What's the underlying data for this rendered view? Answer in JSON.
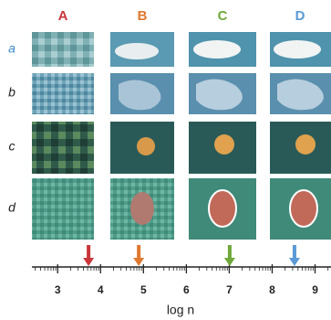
{
  "figure": {
    "columns": [
      {
        "label": "A",
        "color": "#c8363a"
      },
      {
        "label": "B",
        "color": "#e0782e"
      },
      {
        "label": "C",
        "color": "#6ea83a"
      },
      {
        "label": "D",
        "color": "#5a9ad6"
      }
    ],
    "rows": [
      {
        "label": "a",
        "color": "#3a86c8"
      },
      {
        "label": "b",
        "color": "#222222"
      },
      {
        "label": "c",
        "color": "#222222"
      },
      {
        "label": "d",
        "color": "#222222"
      }
    ],
    "axis": {
      "label": "log n",
      "xlim": [
        2.4,
        9.35
      ],
      "xticks": [
        3,
        4,
        5,
        6,
        7,
        8,
        9
      ],
      "markers": [
        3.72,
        4.89,
        7.01,
        8.52
      ]
    }
  }
}
